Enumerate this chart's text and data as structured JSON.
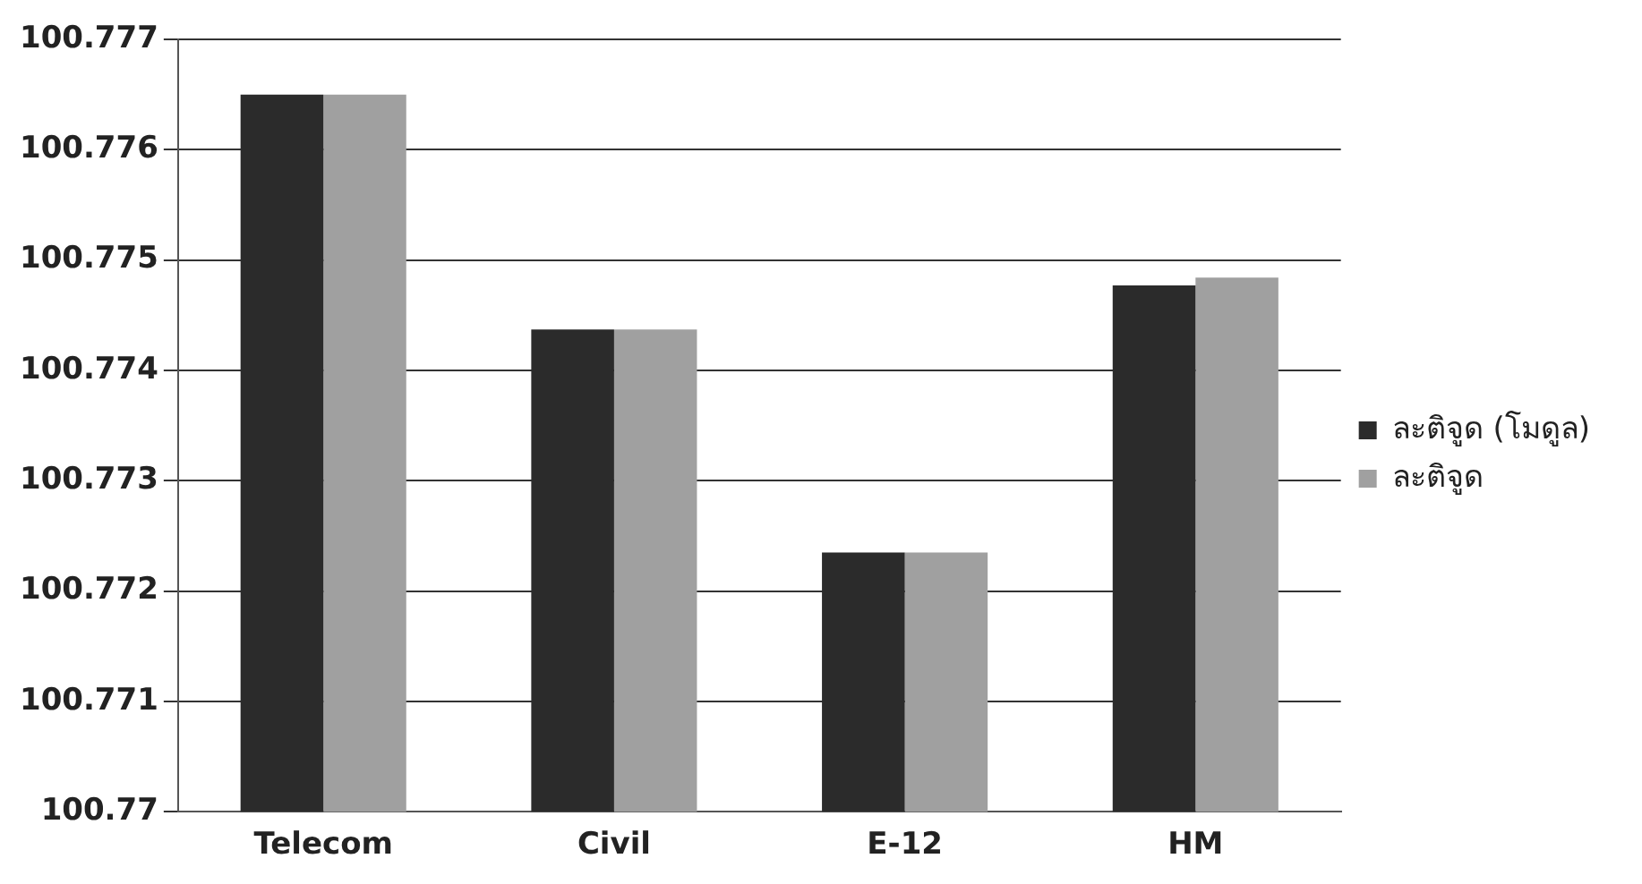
{
  "chart_data": {
    "type": "bar",
    "categories": [
      "Telecom",
      "Civil",
      "E-12",
      "HM"
    ],
    "series": [
      {
        "name": "ละติจูด (โมดูล)",
        "color": "#2b2b2b",
        "values": [
          100.7765,
          100.77437,
          100.77235,
          100.77477
        ]
      },
      {
        "name": "ละติจูด",
        "color": "#a0a0a0",
        "values": [
          100.7765,
          100.77437,
          100.77235,
          100.77484
        ]
      }
    ],
    "ylim": [
      100.77,
      100.777
    ],
    "yticks": [
      100.77,
      100.771,
      100.772,
      100.773,
      100.774,
      100.775,
      100.776,
      100.777
    ],
    "grid": "y",
    "legend": "right"
  }
}
